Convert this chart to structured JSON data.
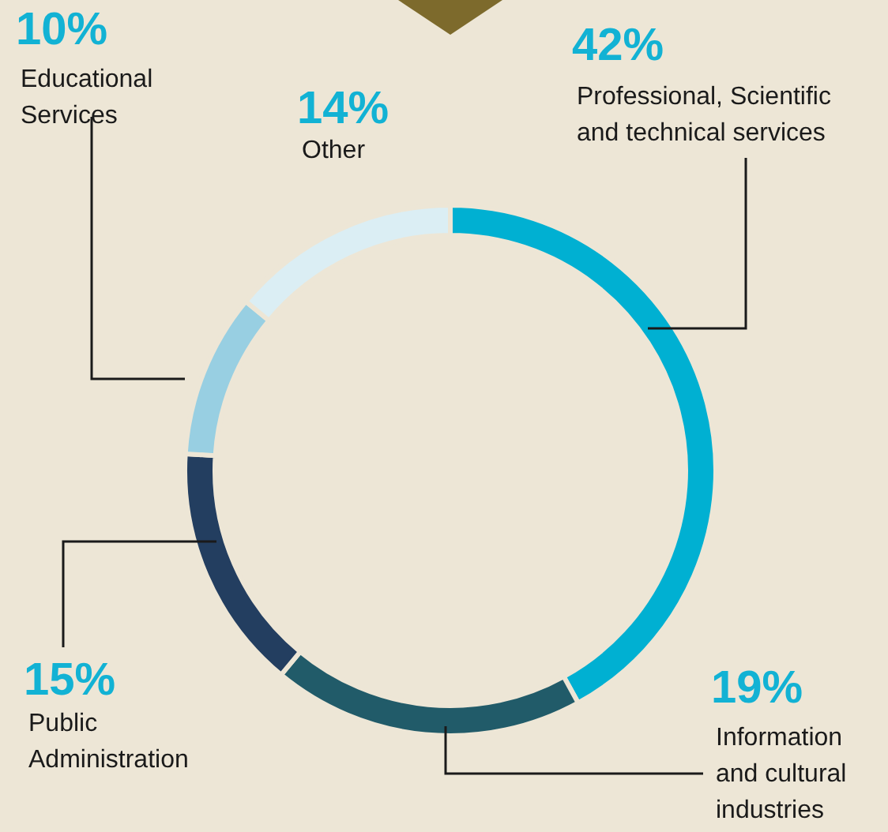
{
  "chart_data": {
    "type": "donut",
    "categories": [
      "Professional, Scientific and technical services",
      "Information and cultural industries",
      "Public Administration",
      "Educational Services",
      "Other"
    ],
    "values": [
      42,
      19,
      15,
      10,
      14
    ],
    "value_labels": [
      "42%",
      "19%",
      "15%",
      "10%",
      "14%"
    ],
    "colors": [
      "#00b0d2",
      "#215b69",
      "#233e60",
      "#98cfe2",
      "#dbeef4"
    ]
  }
}
